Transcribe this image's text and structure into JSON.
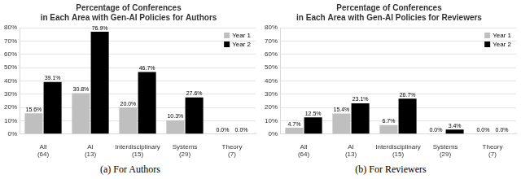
{
  "chart_data": [
    {
      "type": "bar",
      "title": [
        "Percentage of Conferences",
        "in Each Area with Gen-AI Policies for Authors"
      ],
      "caption": "(a) For Authors",
      "categories": [
        "All (64)",
        "AI (13)",
        "Interdisciplinary (15)",
        "Systems (29)",
        "Theory (7)"
      ],
      "series": [
        {
          "name": "Year 1",
          "color": "#bfbfbf",
          "values": [
            15.6,
            30.8,
            20.0,
            10.3,
            0.0
          ],
          "value_labels": [
            "15.6%",
            "30.8%",
            "20.0%",
            "10.3%",
            "0.0%"
          ]
        },
        {
          "name": "Year 2",
          "color": "#000000",
          "values": [
            39.1,
            76.9,
            46.7,
            27.6,
            0.0
          ],
          "value_labels": [
            "39.1%",
            "76.9%",
            "46.7%",
            "27.6%",
            "0.0%"
          ]
        }
      ],
      "ylim": [
        0,
        80
      ],
      "yticks": [
        {
          "value": 0,
          "label": "0%"
        },
        {
          "value": 10,
          "label": "10%"
        },
        {
          "value": 20,
          "label": "20%"
        },
        {
          "value": 30,
          "label": "30%"
        },
        {
          "value": 40,
          "label": "40%"
        },
        {
          "value": 50,
          "label": "50%"
        },
        {
          "value": 60,
          "label": "60%"
        },
        {
          "value": 70,
          "label": "70%"
        },
        {
          "value": 80,
          "label": "80%"
        }
      ],
      "grid": true,
      "legend": "top-right",
      "data_labels": true
    },
    {
      "type": "bar",
      "title": [
        "Percentage of Conferences",
        "in Each Area with Gen-AI Policies for Reviewers"
      ],
      "caption": "(b) For Reviewers",
      "categories": [
        "All (64)",
        "AI (13)",
        "Interdisciplinary (15)",
        "Systems (29)",
        "Theory (7)"
      ],
      "series": [
        {
          "name": "Year 1",
          "color": "#bfbfbf",
          "values": [
            4.7,
            15.4,
            6.7,
            0.0,
            0.0
          ],
          "value_labels": [
            "4.7%",
            "15.4%",
            "6.7%",
            "0.0%",
            "0.0%"
          ]
        },
        {
          "name": "Year 2",
          "color": "#000000",
          "values": [
            12.5,
            23.1,
            26.7,
            3.4,
            0.0
          ],
          "value_labels": [
            "12.5%",
            "23.1%",
            "26.7%",
            "3.4%",
            "0.0%"
          ]
        }
      ],
      "ylim": [
        0,
        80
      ],
      "yticks": [
        {
          "value": 0,
          "label": "0%"
        },
        {
          "value": 10,
          "label": "10%"
        },
        {
          "value": 20,
          "label": "20%"
        },
        {
          "value": 30,
          "label": "30%"
        },
        {
          "value": 40,
          "label": "40%"
        },
        {
          "value": 50,
          "label": "50%"
        },
        {
          "value": 60,
          "label": "60%"
        },
        {
          "value": 70,
          "label": "70%"
        },
        {
          "value": 80,
          "label": "80%"
        }
      ],
      "grid": true,
      "legend": "top-right",
      "data_labels": true
    }
  ]
}
